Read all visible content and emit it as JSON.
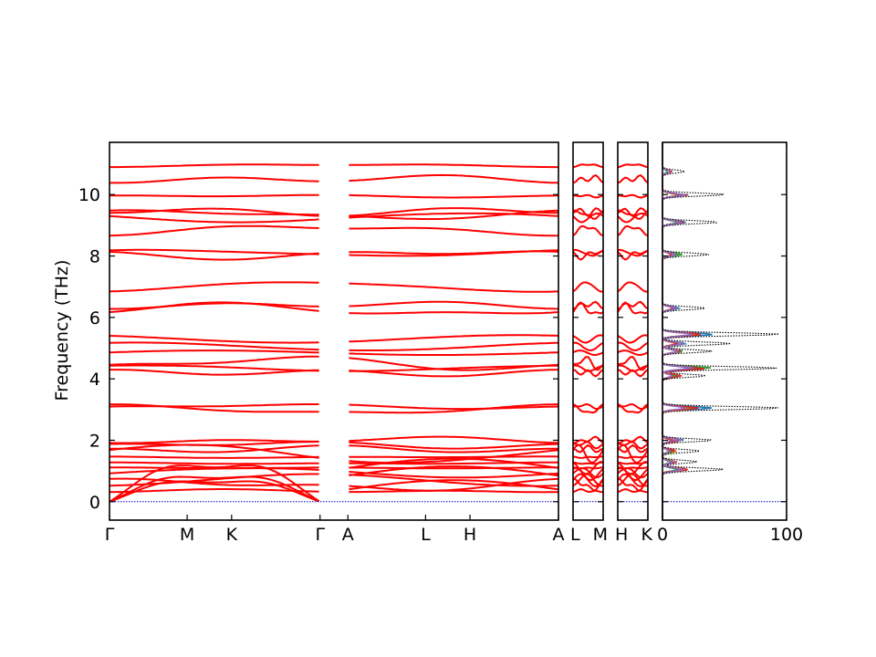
{
  "chart_data": {
    "type": "line",
    "ylabel": "Frequency (THz)",
    "ylim": [
      -0.6,
      11.7
    ],
    "yticks": [
      "0",
      "2",
      "4",
      "6",
      "8",
      "10"
    ],
    "band_color": "#ff0000",
    "zero_line_color": "#0000cc",
    "band_panels": [
      {
        "path": [
          "Γ",
          "M",
          "K",
          "Γ"
        ],
        "xticks": [
          {
            "label": "Γ",
            "pos": 0.0
          },
          {
            "label": "M",
            "pos": 0.173
          },
          {
            "label": "K",
            "pos": 0.272
          },
          {
            "label": "Γ",
            "pos": 0.469
          }
        ]
      },
      {
        "path": [
          "A",
          "L",
          "H",
          "A"
        ],
        "xticks": [
          {
            "label": "A",
            "pos": 0.531
          },
          {
            "label": "L",
            "pos": 0.704
          },
          {
            "label": "H",
            "pos": 0.803
          },
          {
            "label": "A",
            "pos": 1.0
          }
        ]
      },
      {
        "path": [
          "L",
          "M"
        ],
        "xticks": [
          {
            "label": "L",
            "pos": 0.0
          },
          {
            "label": "M",
            "pos": 1.0
          }
        ]
      },
      {
        "path": [
          "H",
          "K"
        ],
        "xticks": [
          {
            "label": "H",
            "pos": 0.0
          },
          {
            "label": "K",
            "pos": 1.0
          }
        ]
      }
    ],
    "bands_at_gamma_thz": [
      0,
      0,
      0,
      0.35,
      0.55,
      0.7,
      0.95,
      1.1,
      1.25,
      1.45,
      1.55,
      1.7,
      1.85,
      2.0,
      3.0,
      3.1,
      4.2,
      4.35,
      4.5,
      4.85,
      5.05,
      5.3,
      6.25,
      6.4,
      7.0,
      8.05,
      8.1,
      8.85,
      9.25,
      9.35,
      9.45,
      9.95,
      10.5,
      10.95
    ],
    "dos": {
      "xlim": [
        0,
        100
      ],
      "xticks": [
        "0",
        "100"
      ],
      "total_color": "#000000",
      "peaks": [
        {
          "freq": 10.75,
          "value": 18
        },
        {
          "freq": 10.0,
          "value": 50
        },
        {
          "freq": 9.1,
          "value": 45
        },
        {
          "freq": 8.05,
          "value": 38
        },
        {
          "freq": 6.3,
          "value": 35
        },
        {
          "freq": 5.45,
          "value": 95
        },
        {
          "freq": 5.15,
          "value": 55
        },
        {
          "freq": 4.9,
          "value": 40
        },
        {
          "freq": 4.35,
          "value": 92
        },
        {
          "freq": 4.1,
          "value": 35
        },
        {
          "freq": 3.05,
          "value": 95
        },
        {
          "freq": 2.0,
          "value": 40
        },
        {
          "freq": 1.65,
          "value": 30
        },
        {
          "freq": 1.3,
          "value": 28
        },
        {
          "freq": 1.05,
          "value": 50
        }
      ],
      "partial_colors": [
        "#1f77b4",
        "#ff7f0e",
        "#2ca02c",
        "#d62728",
        "#9467bd"
      ]
    }
  }
}
